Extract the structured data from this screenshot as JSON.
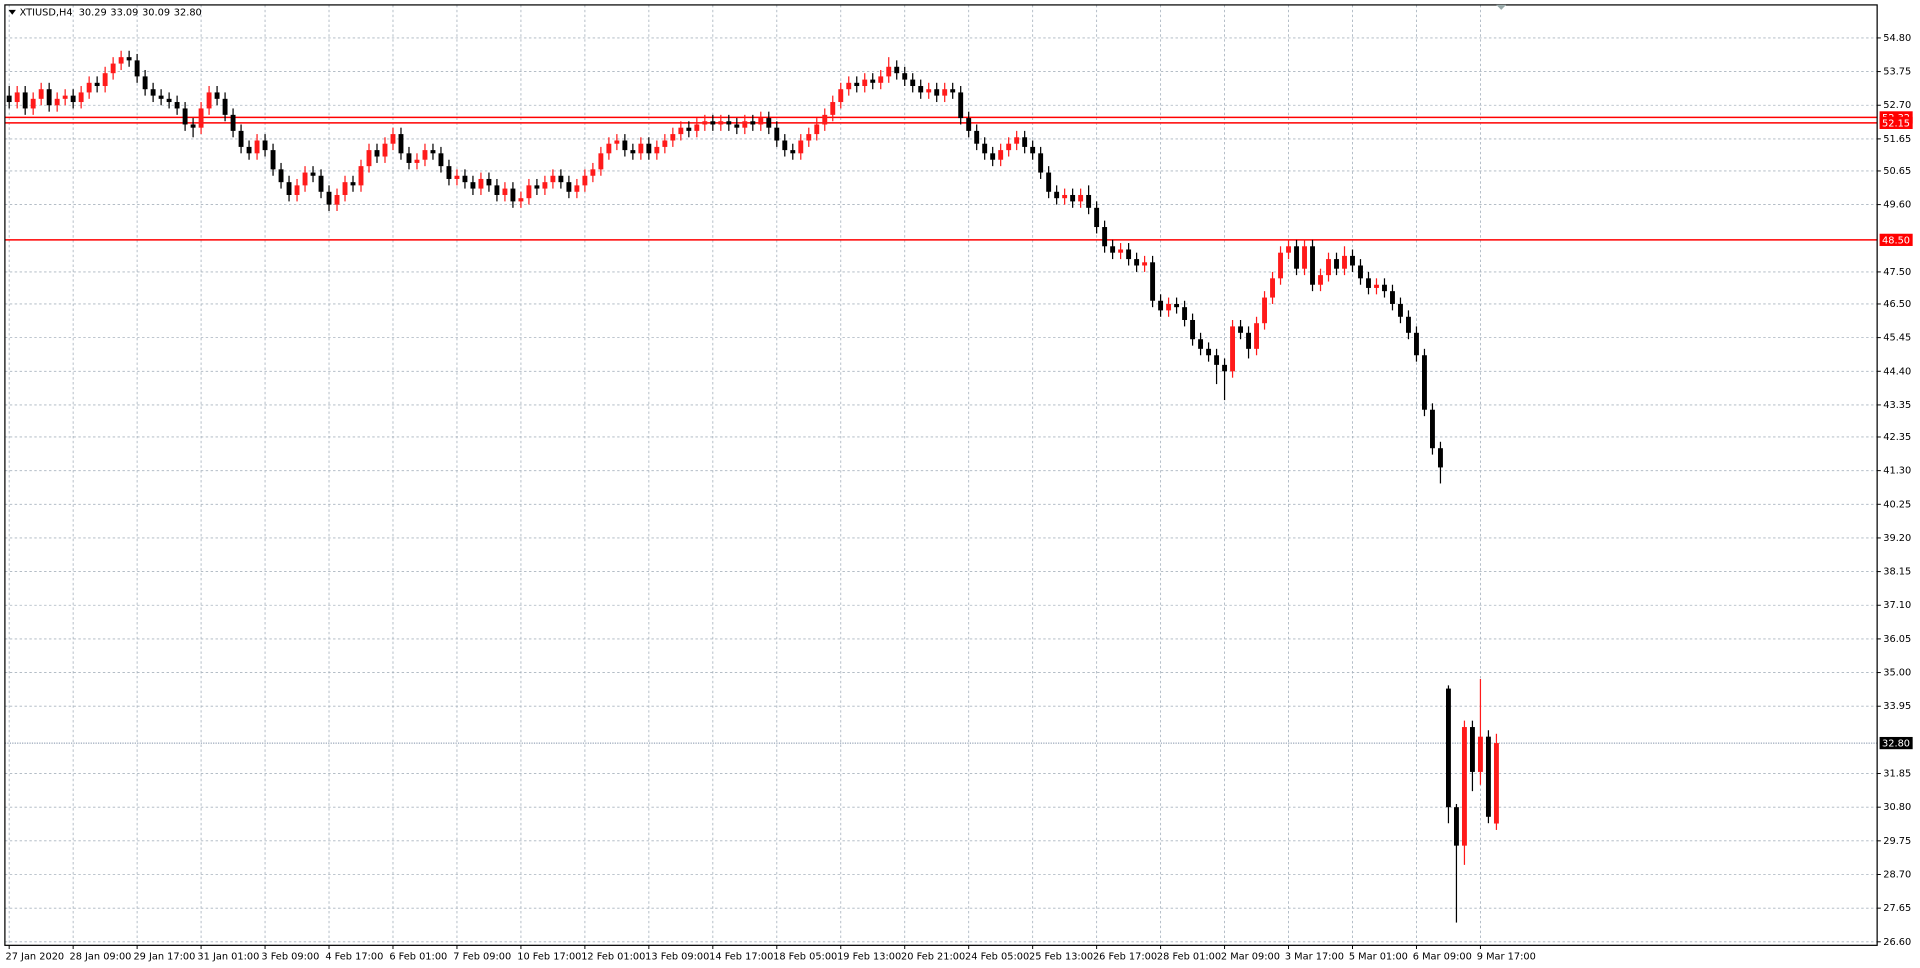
{
  "chart_data": {
    "type": "candlestick",
    "title": "XTIUSD,H4",
    "info_labels": [
      "30.29",
      "33.09",
      "30.09",
      "32.80"
    ],
    "bull_color": "#ff1a1a",
    "bear_color": "#000000",
    "grid": true,
    "ylim": [
      26.49,
      55.83
    ],
    "yticks": [
      {
        "value": 54.8,
        "label": "54.80"
      },
      53.75,
      {
        "value": 52.7,
        "label": "52.70"
      },
      51.65,
      50.65,
      {
        "value": 49.6,
        "label": "49.60"
      },
      {
        "value": 47.5,
        "label": "47.50"
      },
      {
        "value": 46.5,
        "label": "46.50"
      },
      45.45,
      {
        "value": 44.4,
        "label": "44.40"
      },
      43.35,
      42.35,
      {
        "value": 41.3,
        "label": "41.30"
      },
      40.25,
      {
        "value": 39.2,
        "label": "39.20"
      },
      38.15,
      {
        "value": 37.1,
        "label": "37.10"
      },
      36.05,
      {
        "value": 35,
        "label": "35.00"
      },
      33.95,
      31.85,
      {
        "value": 30.8,
        "label": "30.80"
      },
      29.75,
      {
        "value": 28.7,
        "label": "28.70"
      },
      27.65,
      {
        "value": 26.6,
        "label": "26.60"
      }
    ],
    "hlines": [
      {
        "value": 52.32,
        "color": "#ff0000"
      },
      {
        "value": 52.15,
        "color": "#ff0000"
      },
      {
        "value": 48.5,
        "label": "48.50",
        "color": "#ff0000"
      },
      {
        "value": 32.8,
        "label": "32.80",
        "color": "#7f8fa6",
        "style": "dotted"
      }
    ],
    "categories": [
      "27 Jan 2020",
      null,
      null,
      null,
      null,
      null,
      null,
      null,
      "28 Jan 09:00",
      null,
      null,
      null,
      null,
      null,
      null,
      null,
      "29 Jan 17:00",
      null,
      null,
      null,
      null,
      null,
      null,
      null,
      "31 Jan 01:00",
      null,
      null,
      null,
      null,
      null,
      null,
      null,
      "3 Feb 09:00",
      null,
      null,
      null,
      null,
      null,
      null,
      null,
      "4 Feb 17:00",
      null,
      null,
      null,
      null,
      null,
      null,
      null,
      "6 Feb 01:00",
      null,
      null,
      null,
      null,
      null,
      null,
      null,
      "7 Feb 09:00",
      null,
      null,
      null,
      null,
      null,
      null,
      null,
      "10 Feb 17:00",
      null,
      null,
      null,
      null,
      null,
      null,
      null,
      "12 Feb 01:00",
      null,
      null,
      null,
      null,
      null,
      null,
      null,
      "13 Feb 09:00",
      null,
      null,
      null,
      null,
      null,
      null,
      null,
      "14 Feb 17:00",
      null,
      null,
      null,
      null,
      null,
      null,
      null,
      "18 Feb 05:00",
      null,
      null,
      null,
      null,
      null,
      null,
      null,
      "19 Feb 13:00",
      null,
      null,
      null,
      null,
      null,
      null,
      null,
      "20 Feb 21:00",
      null,
      null,
      null,
      null,
      null,
      null,
      null,
      "24 Feb 05:00",
      null,
      null,
      null,
      null,
      null,
      null,
      null,
      "25 Feb 13:00",
      null,
      null,
      null,
      null,
      null,
      null,
      null,
      "26 Feb 17:00",
      null,
      null,
      null,
      null,
      null,
      null,
      null,
      "28 Feb 01:00",
      null,
      null,
      null,
      null,
      null,
      null,
      null,
      "2 Mar 09:00",
      null,
      null,
      null,
      null,
      null,
      null,
      null,
      "3 Mar 17:00",
      null,
      null,
      null,
      null,
      null,
      null,
      null,
      "5 Mar 01:00",
      null,
      null,
      null,
      null,
      null,
      null,
      null,
      "6 Mar 09:00",
      null,
      null,
      null,
      null,
      null,
      null,
      null,
      "9 Mar 17:00",
      null,
      null
    ],
    "ohlc": [
      [
        53.0,
        53.3,
        52.6,
        52.8
      ],
      [
        52.8,
        53.3,
        52.6,
        53.1
      ],
      [
        53.1,
        53.3,
        52.4,
        52.6
      ],
      [
        52.6,
        53.1,
        52.4,
        52.9
      ],
      [
        52.9,
        53.4,
        52.7,
        53.2
      ],
      [
        53.2,
        53.4,
        52.5,
        52.7
      ],
      [
        52.7,
        53.1,
        52.5,
        52.9
      ],
      [
        52.9,
        53.2,
        52.7,
        53.0
      ],
      [
        53.0,
        53.2,
        52.6,
        52.8
      ],
      [
        52.8,
        53.3,
        52.6,
        53.1
      ],
      [
        53.1,
        53.6,
        52.9,
        53.4
      ],
      [
        53.4,
        53.6,
        53.1,
        53.3
      ],
      [
        53.3,
        53.9,
        53.1,
        53.7
      ],
      [
        53.7,
        54.2,
        53.5,
        54.0
      ],
      [
        54.0,
        54.4,
        53.8,
        54.2
      ],
      [
        54.2,
        54.4,
        53.9,
        54.1
      ],
      [
        54.1,
        54.3,
        53.4,
        53.6
      ],
      [
        53.6,
        53.8,
        53.0,
        53.2
      ],
      [
        53.2,
        53.4,
        52.8,
        53.0
      ],
      [
        53.0,
        53.2,
        52.7,
        52.9
      ],
      [
        52.9,
        53.1,
        52.6,
        52.8
      ],
      [
        52.8,
        53.0,
        52.4,
        52.6
      ],
      [
        52.6,
        52.8,
        51.9,
        52.1
      ],
      [
        52.1,
        52.3,
        51.7,
        52.0
      ],
      [
        52.0,
        52.8,
        51.8,
        52.6
      ],
      [
        52.6,
        53.3,
        52.4,
        53.1
      ],
      [
        53.1,
        53.3,
        52.7,
        52.9
      ],
      [
        52.9,
        53.1,
        52.2,
        52.4
      ],
      [
        52.4,
        52.6,
        51.7,
        51.9
      ],
      [
        51.9,
        52.1,
        51.2,
        51.4
      ],
      [
        51.4,
        51.6,
        51.0,
        51.2
      ],
      [
        51.2,
        51.8,
        51.0,
        51.6
      ],
      [
        51.6,
        51.8,
        51.1,
        51.3
      ],
      [
        51.3,
        51.5,
        50.5,
        50.7
      ],
      [
        50.7,
        50.9,
        50.1,
        50.3
      ],
      [
        50.3,
        50.5,
        49.7,
        49.9
      ],
      [
        49.9,
        50.4,
        49.7,
        50.2
      ],
      [
        50.2,
        50.8,
        50.0,
        50.6
      ],
      [
        50.6,
        50.8,
        50.3,
        50.5
      ],
      [
        50.5,
        50.7,
        49.8,
        50.0
      ],
      [
        50.0,
        50.2,
        49.4,
        49.6
      ],
      [
        49.6,
        50.1,
        49.4,
        49.9
      ],
      [
        49.9,
        50.5,
        49.7,
        50.3
      ],
      [
        50.3,
        50.5,
        50.0,
        50.2
      ],
      [
        50.2,
        51.0,
        50.0,
        50.8
      ],
      [
        50.8,
        51.5,
        50.6,
        51.3
      ],
      [
        51.3,
        51.5,
        50.9,
        51.1
      ],
      [
        51.1,
        51.7,
        50.9,
        51.5
      ],
      [
        51.5,
        52.0,
        51.3,
        51.8
      ],
      [
        51.8,
        52.0,
        51.0,
        51.2
      ],
      [
        51.2,
        51.4,
        50.7,
        50.9
      ],
      [
        50.9,
        51.2,
        50.7,
        51.0
      ],
      [
        51.0,
        51.5,
        50.8,
        51.3
      ],
      [
        51.3,
        51.5,
        51.0,
        51.2
      ],
      [
        51.2,
        51.4,
        50.6,
        50.8
      ],
      [
        50.8,
        51.0,
        50.2,
        50.4
      ],
      [
        50.4,
        50.7,
        50.2,
        50.5
      ],
      [
        50.5,
        50.7,
        50.1,
        50.3
      ],
      [
        50.3,
        50.5,
        49.9,
        50.1
      ],
      [
        50.1,
        50.6,
        49.9,
        50.4
      ],
      [
        50.4,
        50.6,
        50.0,
        50.2
      ],
      [
        50.2,
        50.4,
        49.7,
        49.9
      ],
      [
        49.9,
        50.3,
        49.7,
        50.1
      ],
      [
        50.1,
        50.3,
        49.5,
        49.7
      ],
      [
        49.7,
        50.0,
        49.5,
        49.8
      ],
      [
        49.8,
        50.4,
        49.6,
        50.2
      ],
      [
        50.2,
        50.4,
        49.9,
        50.1
      ],
      [
        50.1,
        50.5,
        49.9,
        50.3
      ],
      [
        50.3,
        50.7,
        50.1,
        50.5
      ],
      [
        50.5,
        50.7,
        50.1,
        50.3
      ],
      [
        50.3,
        50.5,
        49.8,
        50.0
      ],
      [
        50.0,
        50.4,
        49.8,
        50.2
      ],
      [
        50.2,
        50.7,
        50.0,
        50.5
      ],
      [
        50.5,
        50.9,
        50.3,
        50.7
      ],
      [
        50.7,
        51.4,
        50.5,
        51.2
      ],
      [
        51.2,
        51.7,
        51.0,
        51.5
      ],
      [
        51.5,
        51.8,
        51.3,
        51.6
      ],
      [
        51.6,
        51.8,
        51.1,
        51.3
      ],
      [
        51.3,
        51.5,
        51.0,
        51.2
      ],
      [
        51.2,
        51.7,
        51.0,
        51.5
      ],
      [
        51.5,
        51.7,
        51.0,
        51.2
      ],
      [
        51.2,
        51.6,
        51.0,
        51.4
      ],
      [
        51.4,
        51.8,
        51.2,
        51.6
      ],
      [
        51.6,
        52.0,
        51.4,
        51.8
      ],
      [
        51.8,
        52.2,
        51.6,
        52.0
      ],
      [
        52.0,
        52.2,
        51.7,
        51.9
      ],
      [
        51.9,
        52.3,
        51.7,
        52.1
      ],
      [
        52.1,
        52.4,
        51.9,
        52.2
      ],
      [
        52.2,
        52.4,
        51.9,
        52.1
      ],
      [
        52.1,
        52.4,
        51.9,
        52.2
      ],
      [
        52.2,
        52.4,
        51.9,
        52.1
      ],
      [
        52.1,
        52.3,
        51.8,
        52.0
      ],
      [
        52.0,
        52.4,
        51.8,
        52.2
      ],
      [
        52.2,
        52.4,
        51.9,
        52.1
      ],
      [
        52.1,
        52.5,
        51.9,
        52.3
      ],
      [
        52.3,
        52.5,
        51.8,
        52.0
      ],
      [
        52.0,
        52.2,
        51.4,
        51.6
      ],
      [
        51.6,
        51.8,
        51.1,
        51.3
      ],
      [
        51.3,
        51.5,
        51.0,
        51.2
      ],
      [
        51.2,
        51.8,
        51.0,
        51.6
      ],
      [
        51.6,
        52.0,
        51.4,
        51.8
      ],
      [
        51.8,
        52.3,
        51.6,
        52.1
      ],
      [
        52.1,
        52.6,
        51.9,
        52.4
      ],
      [
        52.4,
        53.0,
        52.2,
        52.8
      ],
      [
        52.8,
        53.4,
        52.6,
        53.2
      ],
      [
        53.2,
        53.6,
        53.0,
        53.4
      ],
      [
        53.4,
        53.6,
        53.1,
        53.3
      ],
      [
        53.3,
        53.7,
        53.1,
        53.5
      ],
      [
        53.5,
        53.7,
        53.2,
        53.4
      ],
      [
        53.4,
        53.8,
        53.2,
        53.6
      ],
      [
        53.6,
        54.2,
        53.4,
        53.9
      ],
      [
        53.9,
        54.1,
        53.5,
        53.7
      ],
      [
        53.7,
        53.9,
        53.3,
        53.5
      ],
      [
        53.5,
        53.7,
        53.1,
        53.3
      ],
      [
        53.3,
        53.5,
        52.9,
        53.1
      ],
      [
        53.1,
        53.4,
        52.9,
        53.2
      ],
      [
        53.2,
        53.4,
        52.8,
        53.0
      ],
      [
        53.0,
        53.4,
        52.8,
        53.2
      ],
      [
        53.2,
        53.4,
        52.9,
        53.1
      ],
      [
        53.1,
        53.3,
        52.1,
        52.3
      ],
      [
        52.3,
        52.5,
        51.7,
        51.9
      ],
      [
        51.9,
        52.1,
        51.3,
        51.5
      ],
      [
        51.5,
        51.7,
        51.0,
        51.2
      ],
      [
        51.2,
        51.4,
        50.8,
        51.0
      ],
      [
        51.0,
        51.5,
        50.8,
        51.3
      ],
      [
        51.3,
        51.7,
        51.1,
        51.5
      ],
      [
        51.5,
        51.9,
        51.3,
        51.7
      ],
      [
        51.7,
        51.9,
        51.2,
        51.4
      ],
      [
        51.4,
        51.6,
        51.0,
        51.2
      ],
      [
        51.2,
        51.4,
        50.4,
        50.6
      ],
      [
        50.6,
        50.8,
        49.8,
        50.0
      ],
      [
        50.0,
        50.2,
        49.6,
        49.8
      ],
      [
        49.8,
        50.1,
        49.6,
        49.9
      ],
      [
        49.9,
        50.1,
        49.5,
        49.7
      ],
      [
        49.7,
        50.1,
        49.5,
        49.9
      ],
      [
        49.9,
        50.2,
        49.3,
        49.5
      ],
      [
        49.5,
        49.7,
        48.7,
        48.9
      ],
      [
        48.9,
        49.1,
        48.1,
        48.3
      ],
      [
        48.3,
        48.5,
        47.9,
        48.1
      ],
      [
        48.1,
        48.4,
        47.9,
        48.2
      ],
      [
        48.2,
        48.4,
        47.7,
        47.9
      ],
      [
        47.9,
        48.1,
        47.5,
        47.7
      ],
      [
        47.7,
        48.0,
        47.5,
        47.8
      ],
      [
        47.8,
        48.0,
        46.4,
        46.6
      ],
      [
        46.6,
        46.8,
        46.1,
        46.3
      ],
      [
        46.3,
        46.7,
        46.1,
        46.5
      ],
      [
        46.5,
        46.7,
        46.2,
        46.4
      ],
      [
        46.4,
        46.6,
        45.8,
        46.0
      ],
      [
        46.0,
        46.2,
        45.2,
        45.4
      ],
      [
        45.4,
        45.6,
        44.9,
        45.1
      ],
      [
        45.1,
        45.3,
        44.7,
        44.9
      ],
      [
        44.9,
        45.1,
        44.0,
        44.6
      ],
      [
        44.6,
        44.8,
        43.5,
        44.4
      ],
      [
        44.4,
        46.0,
        44.2,
        45.8
      ],
      [
        45.8,
        46.0,
        45.4,
        45.6
      ],
      [
        45.6,
        45.8,
        44.8,
        45.1
      ],
      [
        45.1,
        46.1,
        44.9,
        45.9
      ],
      [
        45.9,
        46.9,
        45.7,
        46.7
      ],
      [
        46.7,
        47.5,
        46.5,
        47.3
      ],
      [
        47.3,
        48.3,
        47.1,
        48.1
      ],
      [
        48.1,
        48.5,
        47.9,
        48.3
      ],
      [
        48.3,
        48.5,
        47.4,
        47.6
      ],
      [
        47.6,
        48.5,
        47.4,
        48.3
      ],
      [
        48.3,
        48.5,
        46.9,
        47.1
      ],
      [
        47.1,
        47.6,
        46.9,
        47.4
      ],
      [
        47.4,
        48.1,
        47.2,
        47.9
      ],
      [
        47.9,
        48.1,
        47.4,
        47.6
      ],
      [
        47.6,
        48.3,
        47.4,
        48.0
      ],
      [
        48.0,
        48.2,
        47.5,
        47.7
      ],
      [
        47.7,
        47.9,
        47.1,
        47.3
      ],
      [
        47.3,
        47.5,
        46.8,
        47.0
      ],
      [
        47.0,
        47.3,
        46.8,
        47.1
      ],
      [
        47.1,
        47.3,
        46.7,
        46.9
      ],
      [
        46.9,
        47.1,
        46.3,
        46.5
      ],
      [
        46.5,
        46.7,
        45.9,
        46.1
      ],
      [
        46.1,
        46.3,
        45.4,
        45.6
      ],
      [
        45.6,
        45.8,
        44.7,
        44.9
      ],
      [
        44.9,
        45.1,
        43.0,
        43.2
      ],
      [
        43.2,
        43.4,
        41.8,
        42.0
      ],
      [
        42.0,
        42.2,
        40.9,
        41.4
      ],
      [
        34.5,
        34.6,
        30.3,
        30.8
      ],
      [
        30.8,
        30.9,
        27.2,
        29.6
      ],
      [
        29.6,
        33.5,
        29.0,
        33.3
      ],
      [
        33.3,
        33.5,
        31.3,
        31.9
      ],
      [
        31.9,
        34.8,
        31.5,
        33.0
      ],
      [
        33.0,
        33.2,
        30.3,
        30.5
      ],
      [
        30.29,
        33.09,
        30.09,
        32.8
      ]
    ]
  }
}
